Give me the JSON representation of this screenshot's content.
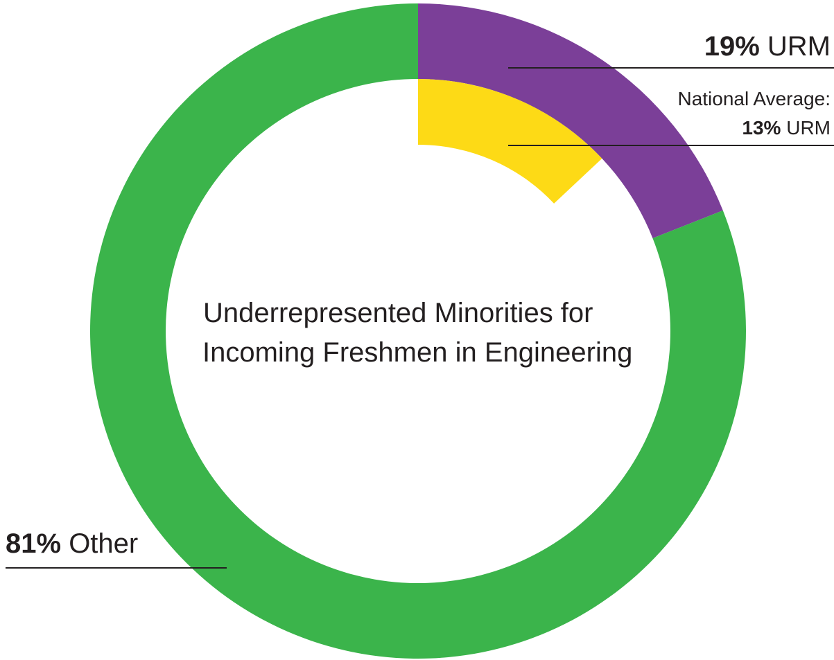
{
  "chart_data": {
    "type": "pie",
    "style": "donut",
    "title": "Underrepresented Minorities for Incoming Freshmen in Engineering",
    "title_lines": [
      "Underrepresented Minorities for",
      "Incoming Freshmen in Engineering"
    ],
    "series": [
      {
        "slices": [
          {
            "label": "URM",
            "value": 19,
            "pct_text": "19%",
            "color": "#7b3f98"
          },
          {
            "label": "Other",
            "value": 81,
            "pct_text": "81%",
            "color": "#3bb44b"
          }
        ]
      }
    ],
    "benchmark": {
      "label_line1": "National Average:",
      "pct_text": "13%",
      "label": "URM",
      "value": 13,
      "color": "#fdda16"
    }
  }
}
